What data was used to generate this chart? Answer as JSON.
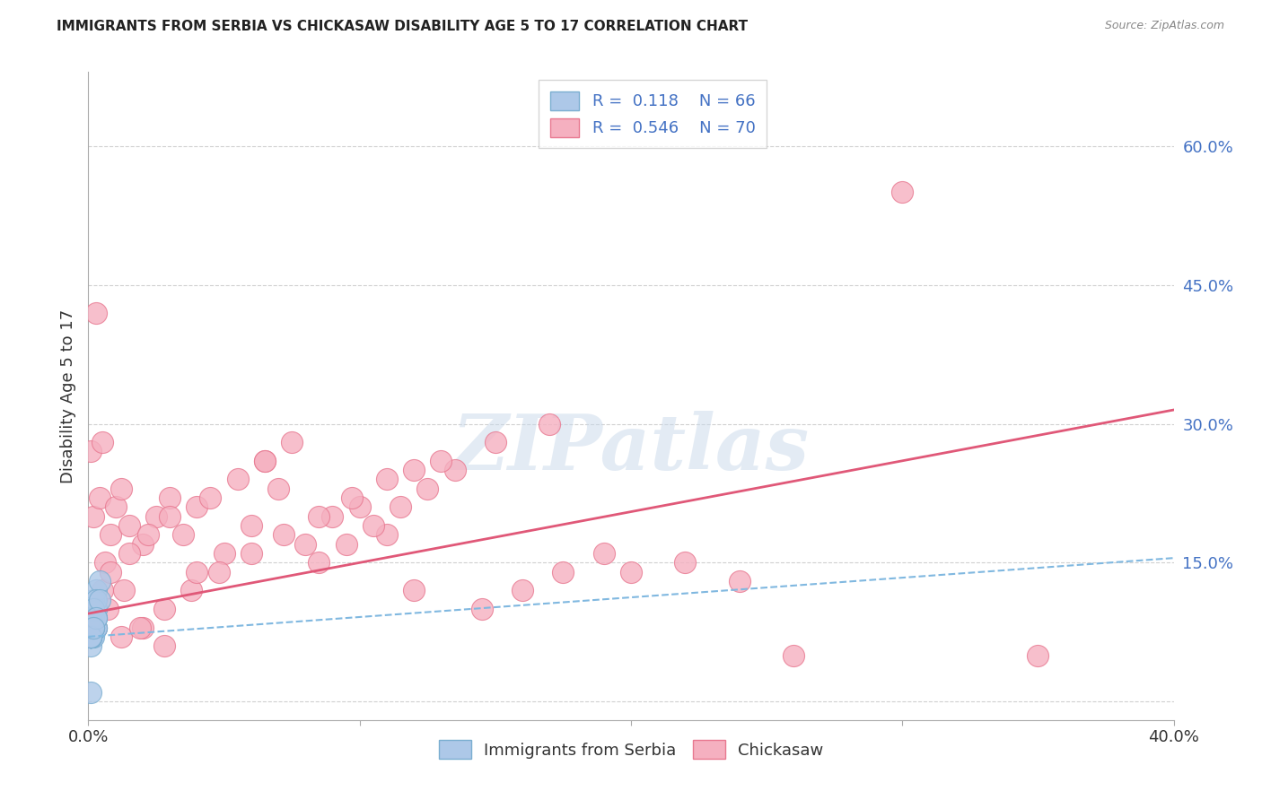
{
  "title": "IMMIGRANTS FROM SERBIA VS CHICKASAW DISABILITY AGE 5 TO 17 CORRELATION CHART",
  "source": "Source: ZipAtlas.com",
  "ylabel": "Disability Age 5 to 17",
  "xlim": [
    0.0,
    0.4
  ],
  "ylim": [
    -0.02,
    0.68
  ],
  "ytick_right_vals": [
    0.0,
    0.15,
    0.3,
    0.45,
    0.6
  ],
  "grid_color": "#d0d0d0",
  "background_color": "#ffffff",
  "serbia_color": "#adc8e8",
  "serbia_edge_color": "#7aaed0",
  "chickasaw_color": "#f5b0c0",
  "chickasaw_edge_color": "#e87890",
  "serbia_R": "0.118",
  "serbia_N": "66",
  "chickasaw_R": "0.546",
  "chickasaw_N": "70",
  "watermark": "ZIPatlas",
  "legend_labels": [
    "Immigrants from Serbia",
    "Chickasaw"
  ],
  "serbia_scatter_x": [
    0.0005,
    0.001,
    0.0008,
    0.0015,
    0.001,
    0.002,
    0.0025,
    0.001,
    0.002,
    0.001,
    0.001,
    0.0015,
    0.002,
    0.001,
    0.001,
    0.002,
    0.003,
    0.001,
    0.002,
    0.001,
    0.001,
    0.002,
    0.002,
    0.001,
    0.001,
    0.002,
    0.002,
    0.001,
    0.002,
    0.001,
    0.003,
    0.002,
    0.002,
    0.001,
    0.002,
    0.002,
    0.001,
    0.001,
    0.003,
    0.002,
    0.001,
    0.004,
    0.002,
    0.003,
    0.001,
    0.002,
    0.001,
    0.003,
    0.003,
    0.001,
    0.001,
    0.002,
    0.001,
    0.003,
    0.001,
    0.002,
    0.001,
    0.003,
    0.002,
    0.001,
    0.004,
    0.002,
    0.001,
    0.003,
    0.002,
    0.001
  ],
  "serbia_scatter_y": [
    0.07,
    0.08,
    0.09,
    0.1,
    0.09,
    0.1,
    0.11,
    0.07,
    0.08,
    0.09,
    0.1,
    0.07,
    0.08,
    0.07,
    0.06,
    0.09,
    0.1,
    0.07,
    0.08,
    0.07,
    0.1,
    0.11,
    0.09,
    0.07,
    0.08,
    0.09,
    0.08,
    0.07,
    0.08,
    0.07,
    0.12,
    0.09,
    0.08,
    0.07,
    0.1,
    0.08,
    0.07,
    0.08,
    0.09,
    0.07,
    0.07,
    0.13,
    0.08,
    0.1,
    0.07,
    0.08,
    0.09,
    0.08,
    0.11,
    0.07,
    0.07,
    0.09,
    0.07,
    0.08,
    0.07,
    0.1,
    0.07,
    0.09,
    0.08,
    0.07,
    0.11,
    0.08,
    0.07,
    0.09,
    0.08,
    0.01
  ],
  "chickasaw_scatter_x": [
    0.002,
    0.004,
    0.006,
    0.008,
    0.01,
    0.015,
    0.012,
    0.02,
    0.025,
    0.03,
    0.035,
    0.04,
    0.05,
    0.06,
    0.07,
    0.08,
    0.09,
    0.1,
    0.11,
    0.12,
    0.002,
    0.005,
    0.008,
    0.015,
    0.022,
    0.03,
    0.045,
    0.055,
    0.065,
    0.075,
    0.085,
    0.095,
    0.105,
    0.115,
    0.125,
    0.135,
    0.145,
    0.16,
    0.175,
    0.19,
    0.003,
    0.007,
    0.013,
    0.02,
    0.028,
    0.038,
    0.048,
    0.06,
    0.072,
    0.085,
    0.097,
    0.11,
    0.13,
    0.15,
    0.17,
    0.2,
    0.22,
    0.24,
    0.26,
    0.3,
    0.001,
    0.003,
    0.005,
    0.012,
    0.019,
    0.028,
    0.04,
    0.065,
    0.12,
    0.35
  ],
  "chickasaw_scatter_y": [
    0.2,
    0.22,
    0.15,
    0.18,
    0.21,
    0.19,
    0.23,
    0.17,
    0.2,
    0.22,
    0.18,
    0.21,
    0.16,
    0.19,
    0.23,
    0.17,
    0.2,
    0.21,
    0.18,
    0.25,
    0.1,
    0.12,
    0.14,
    0.16,
    0.18,
    0.2,
    0.22,
    0.24,
    0.26,
    0.28,
    0.15,
    0.17,
    0.19,
    0.21,
    0.23,
    0.25,
    0.1,
    0.12,
    0.14,
    0.16,
    0.08,
    0.1,
    0.12,
    0.08,
    0.1,
    0.12,
    0.14,
    0.16,
    0.18,
    0.2,
    0.22,
    0.24,
    0.26,
    0.28,
    0.3,
    0.14,
    0.15,
    0.13,
    0.05,
    0.55,
    0.27,
    0.42,
    0.28,
    0.07,
    0.08,
    0.06,
    0.14,
    0.26,
    0.12,
    0.05
  ],
  "serbia_trend_x": [
    0.0,
    0.4
  ],
  "serbia_trend_y": [
    0.07,
    0.155
  ],
  "chickasaw_trend_x": [
    0.0,
    0.4
  ],
  "chickasaw_trend_y": [
    0.095,
    0.315
  ]
}
